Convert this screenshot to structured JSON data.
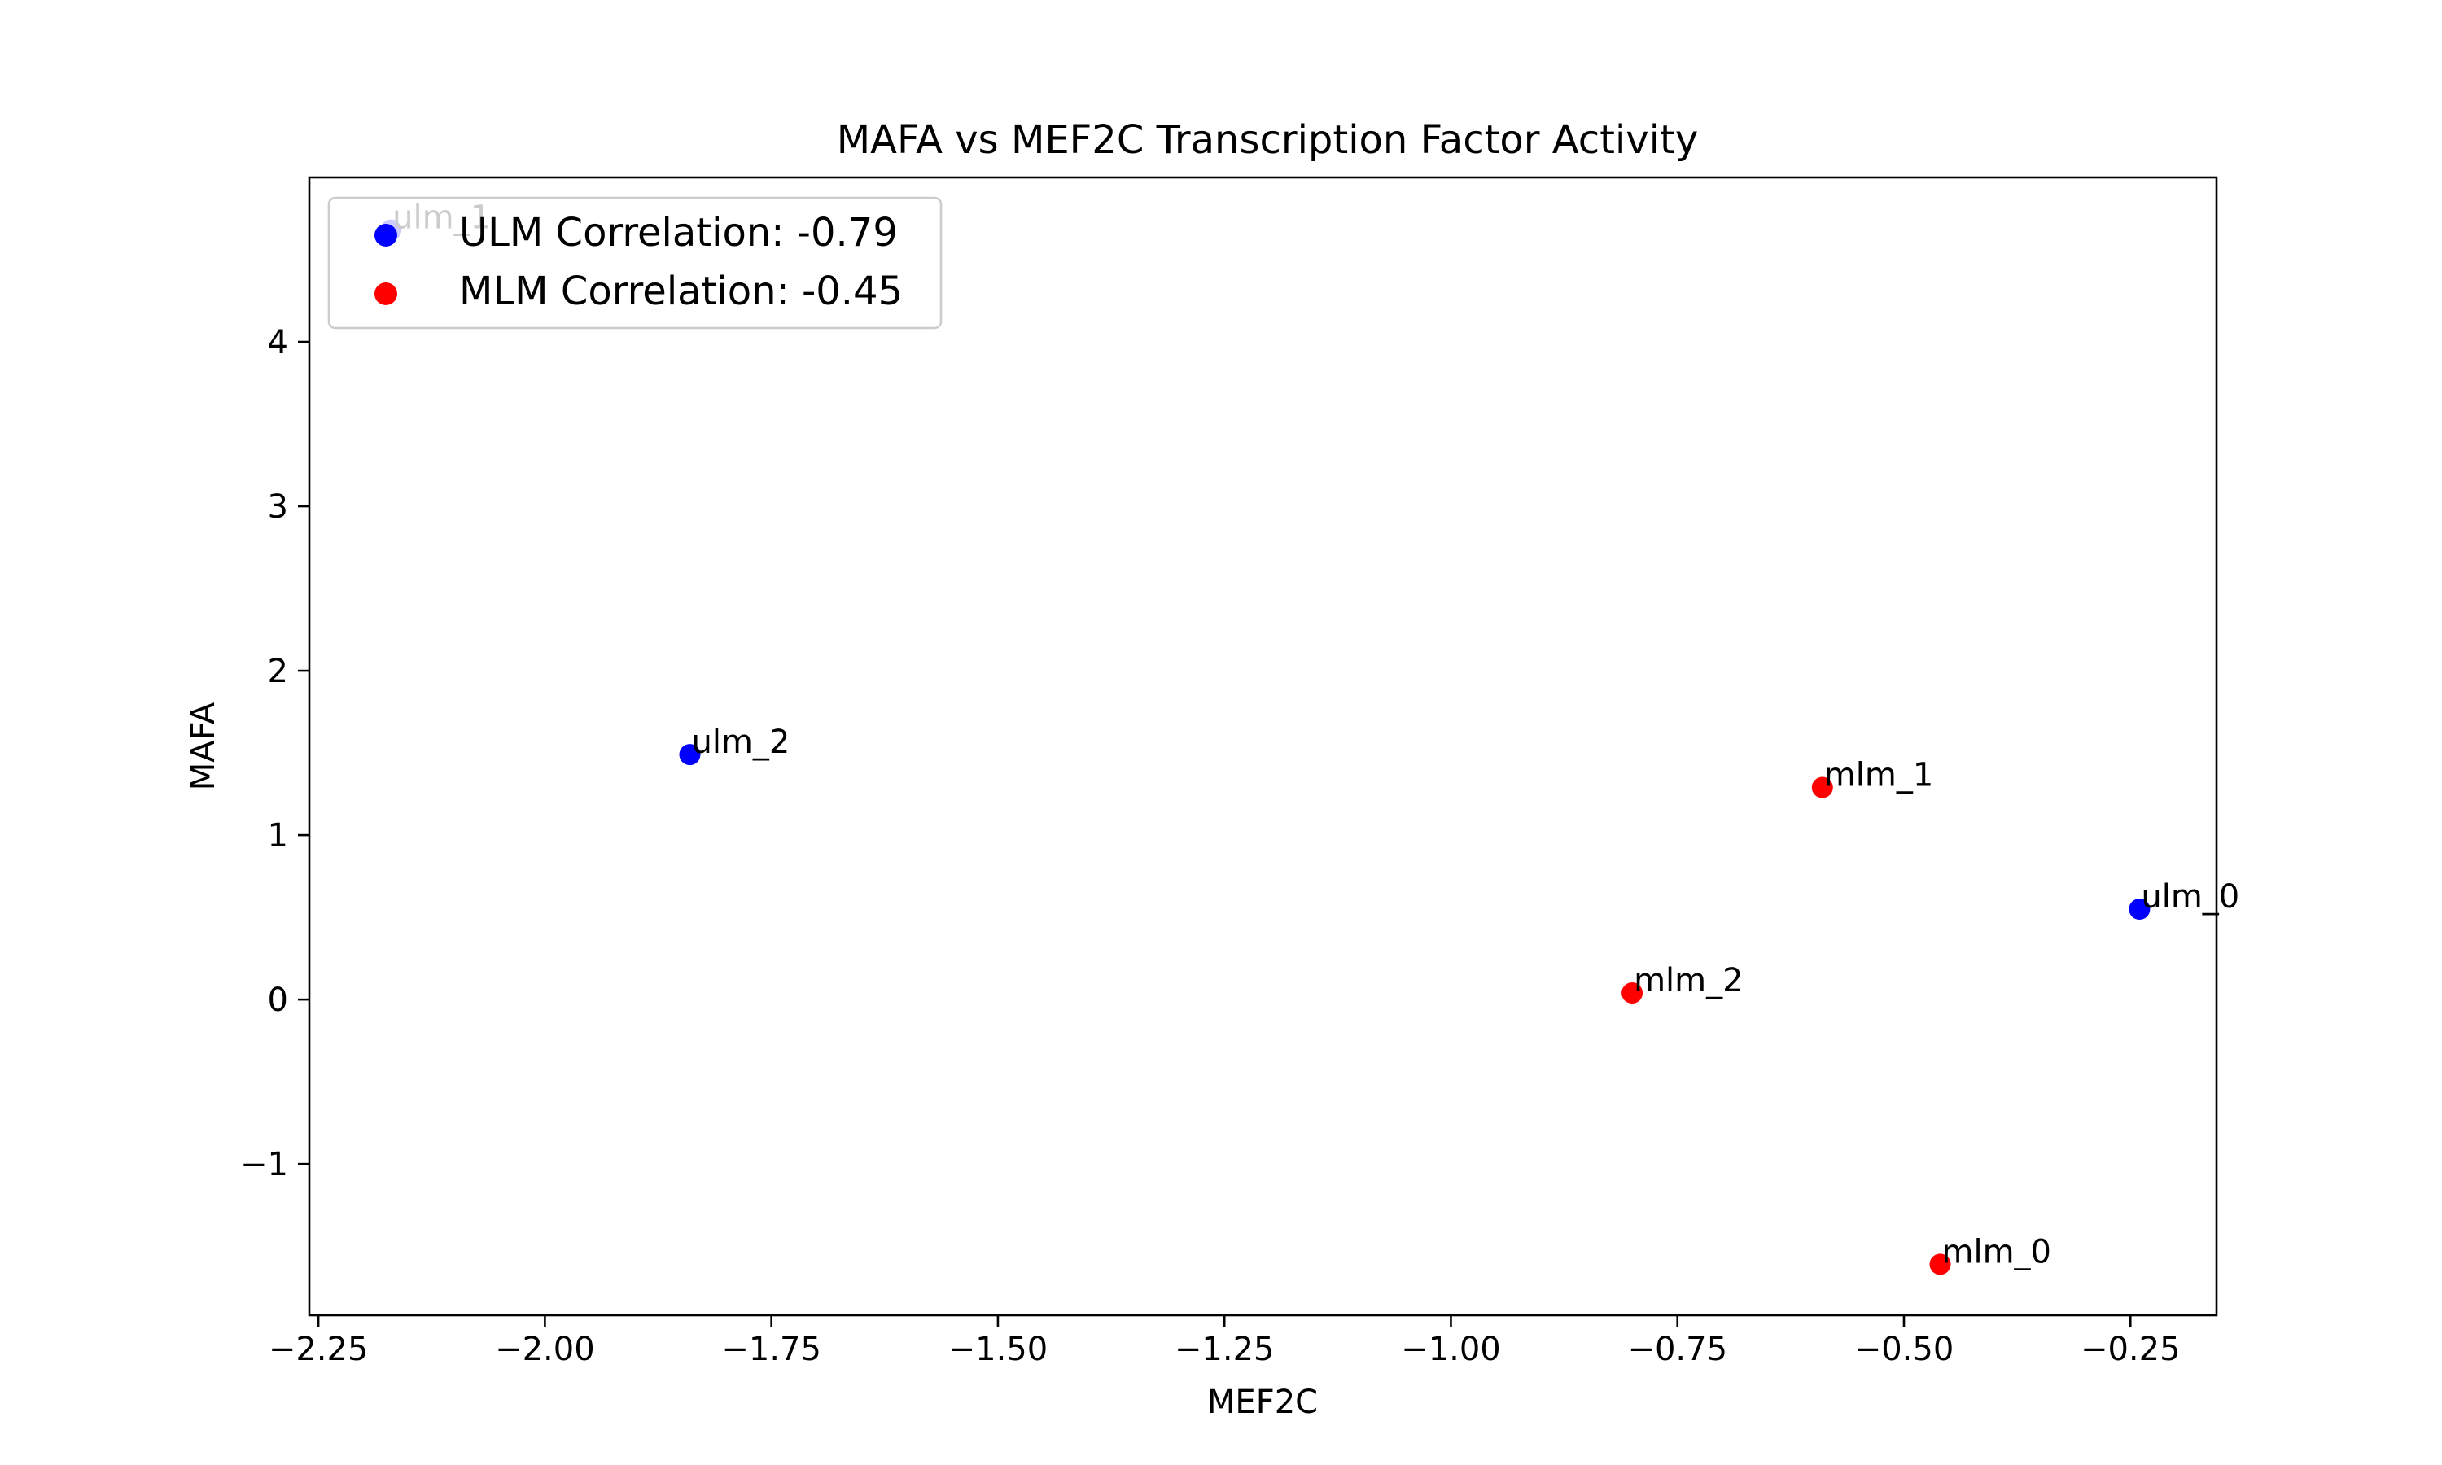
{
  "chart_data": {
    "type": "scatter",
    "title": "MAFA vs MEF2C Transcription Factor Activity",
    "xlabel": "MEF2C",
    "ylabel": "MAFA",
    "xlim": [
      -2.26,
      -0.155
    ],
    "ylim": [
      -1.92,
      5.0
    ],
    "xticks": [
      -2.25,
      -2.0,
      -1.75,
      -1.5,
      -1.25,
      -1.0,
      -0.75,
      -0.5,
      -0.25
    ],
    "xtick_labels": [
      "−2.25",
      "−2.00",
      "−1.75",
      "−1.50",
      "−1.25",
      "−1.00",
      "−0.75",
      "−0.50",
      "−0.25"
    ],
    "yticks": [
      -1,
      0,
      1,
      2,
      3,
      4
    ],
    "ytick_labels": [
      "−1",
      "0",
      "1",
      "2",
      "3",
      "4"
    ],
    "grid": false,
    "legend_position": "upper-left",
    "series": [
      {
        "name": "ULM Correlation: -0.79",
        "color": "#0000ff",
        "points": [
          {
            "label": "ulm_0",
            "x": -0.24,
            "y": 0.55
          },
          {
            "label": "ulm_1",
            "x": -2.17,
            "y": 4.68
          },
          {
            "label": "ulm_2",
            "x": -1.84,
            "y": 1.49
          }
        ]
      },
      {
        "name": "MLM Correlation: -0.45",
        "color": "#ff0000",
        "points": [
          {
            "label": "mlm_0",
            "x": -0.46,
            "y": -1.61
          },
          {
            "label": "mlm_1",
            "x": -0.59,
            "y": 1.29
          },
          {
            "label": "mlm_2",
            "x": -0.8,
            "y": 0.04
          }
        ]
      }
    ]
  }
}
